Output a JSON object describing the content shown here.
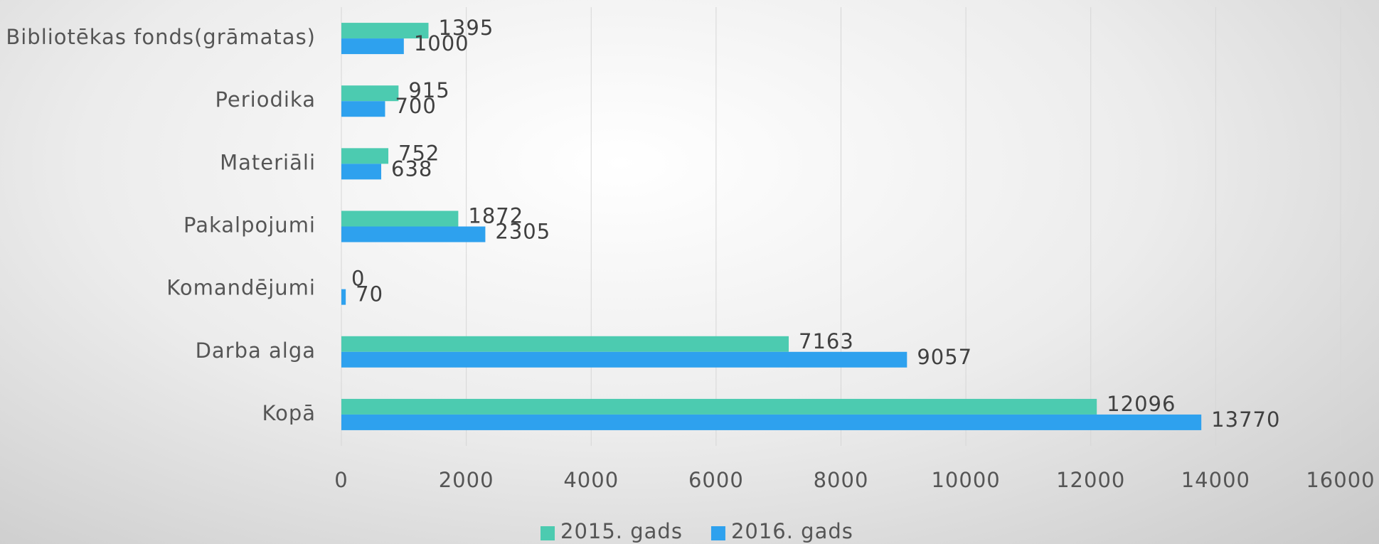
{
  "chart_data": {
    "type": "bar",
    "orientation": "horizontal",
    "categories": [
      "Bibliotēkas fonds(grāmatas)",
      "Periodika",
      "Materiāli",
      "Pakalpojumi",
      "Komandējumi",
      "Darba alga",
      "Kopā"
    ],
    "series": [
      {
        "name": "2015. gads",
        "color": "#4ccbb0",
        "values": [
          1395,
          915,
          752,
          1872,
          0,
          7163,
          12096
        ]
      },
      {
        "name": "2016. gads",
        "color": "#2ea1ee",
        "values": [
          1000,
          700,
          638,
          2305,
          70,
          9057,
          13770
        ]
      }
    ],
    "xlim": [
      0,
      16000
    ],
    "xticks": [
      0,
      2000,
      4000,
      6000,
      8000,
      10000,
      12000,
      14000,
      16000
    ],
    "grid": true,
    "legend": "bottom"
  }
}
